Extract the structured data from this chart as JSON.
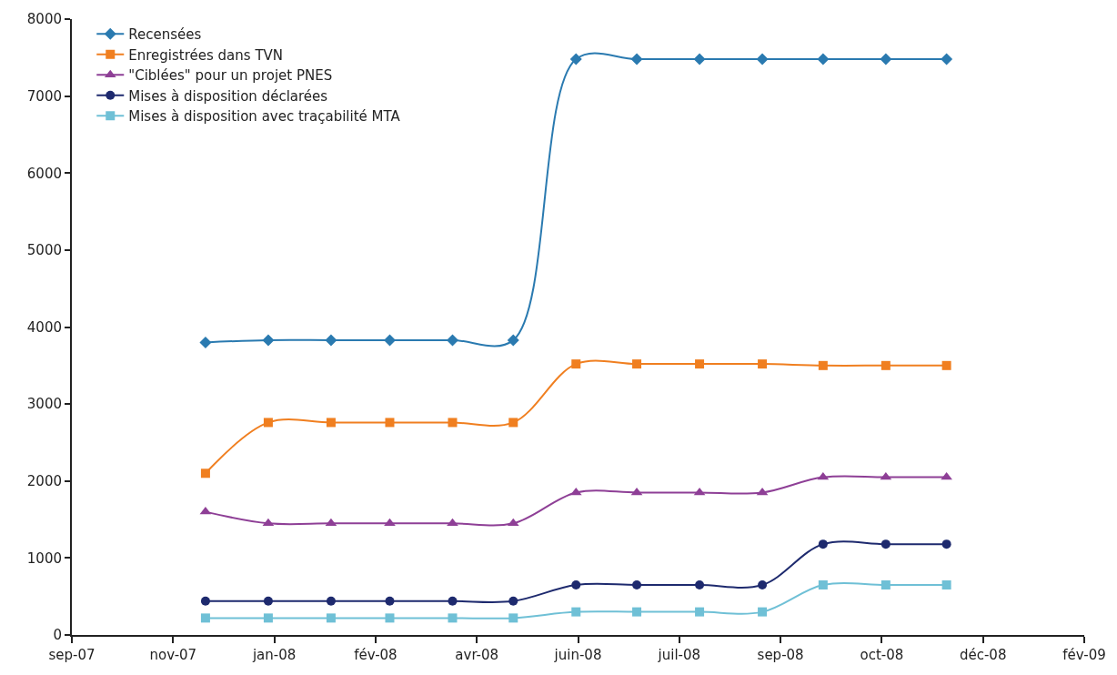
{
  "chart_data": {
    "type": "line",
    "x": [
      "2007-11-30",
      "2007-12-31",
      "2008-01-31",
      "2008-02-29",
      "2008-03-31",
      "2008-04-30",
      "2008-05-31",
      "2008-06-30",
      "2008-07-31",
      "2008-08-31",
      "2008-09-30",
      "2008-10-31",
      "2008-11-30"
    ],
    "series": [
      {
        "name": "Recensées",
        "color": "#2a7ab0",
        "marker": "diamond",
        "values": [
          3800,
          3830,
          3830,
          3830,
          3830,
          3830,
          7480,
          7480,
          7480,
          7480,
          7480,
          7480,
          7480
        ]
      },
      {
        "name": "Enregistrées dans TVN",
        "color": "#f07f20",
        "marker": "square",
        "values": [
          2100,
          2760,
          2760,
          2760,
          2760,
          2760,
          3520,
          3520,
          3520,
          3520,
          3500,
          3500,
          3500
        ]
      },
      {
        "name": "\"Ciblées\" pour un projet PNES",
        "color": "#8e3f96",
        "marker": "triangle",
        "values": [
          1600,
          1450,
          1450,
          1450,
          1450,
          1450,
          1850,
          1850,
          1850,
          1850,
          2050,
          2050,
          2050
        ]
      },
      {
        "name": "Mises à disposition déclarées",
        "color": "#1e2a6e",
        "marker": "circle",
        "values": [
          440,
          440,
          440,
          440,
          440,
          440,
          650,
          650,
          650,
          650,
          1180,
          1180,
          1180
        ]
      },
      {
        "name": "Mises à disposition avec traçabilité MTA",
        "color": "#6fc0d6",
        "marker": "square",
        "values": [
          220,
          220,
          220,
          220,
          220,
          220,
          300,
          300,
          300,
          300,
          650,
          650,
          650
        ]
      }
    ],
    "xlim": [
      "2007-09-25",
      "2009-02-06"
    ],
    "xticks": [
      {
        "value": "2007-09-25",
        "label": "sep-07"
      },
      {
        "value": "2007-11-14",
        "label": "nov-07"
      },
      {
        "value": "2008-01-03",
        "label": "jan-08"
      },
      {
        "value": "2008-02-22",
        "label": "fév-08"
      },
      {
        "value": "2008-04-12",
        "label": "avr-08"
      },
      {
        "value": "2008-06-01",
        "label": "juin-08"
      },
      {
        "value": "2008-07-21",
        "label": "juil-08"
      },
      {
        "value": "2008-09-09",
        "label": "sep-08"
      },
      {
        "value": "2008-10-29",
        "label": "oct-08"
      },
      {
        "value": "2008-12-18",
        "label": "déc-08"
      },
      {
        "value": "2009-02-06",
        "label": "fév-09"
      }
    ],
    "ylim": [
      0,
      8000
    ],
    "yticks": [
      0,
      1000,
      2000,
      3000,
      4000,
      5000,
      6000,
      7000,
      8000
    ],
    "legend": "top left"
  }
}
